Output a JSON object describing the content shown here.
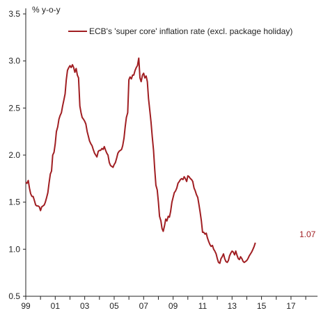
{
  "chart_data": {
    "type": "line",
    "title": "",
    "xlabel": "",
    "ylabel": "% y-o-y",
    "ylim": [
      0.5,
      3.5
    ],
    "yticks": [
      "0.5",
      "1.0",
      "1.5",
      "2.0",
      "2.5",
      "3.0",
      "3.5"
    ],
    "xlim": [
      1999,
      2018.8
    ],
    "xticks": [
      "99",
      "01",
      "03",
      "05",
      "07",
      "09",
      "11",
      "13",
      "15",
      "17"
    ],
    "grid": false,
    "legend_position": "top-right",
    "end_label": "1.07",
    "series": [
      {
        "name": "ECB's 'super core' inflation rate (excl. package holiday)",
        "color": "#a01e22",
        "points": [
          [
            1999.0,
            1.71
          ],
          [
            1999.08,
            1.7
          ],
          [
            1999.17,
            1.73
          ],
          [
            1999.25,
            1.65
          ],
          [
            1999.33,
            1.59
          ],
          [
            1999.42,
            1.56
          ],
          [
            1999.5,
            1.56
          ],
          [
            1999.58,
            1.52
          ],
          [
            1999.67,
            1.47
          ],
          [
            1999.75,
            1.46
          ],
          [
            1999.83,
            1.46
          ],
          [
            1999.92,
            1.45
          ],
          [
            2000.0,
            1.41
          ],
          [
            2000.08,
            1.45
          ],
          [
            2000.17,
            1.46
          ],
          [
            2000.25,
            1.47
          ],
          [
            2000.33,
            1.5
          ],
          [
            2000.42,
            1.55
          ],
          [
            2000.5,
            1.6
          ],
          [
            2000.58,
            1.7
          ],
          [
            2000.67,
            1.8
          ],
          [
            2000.75,
            1.83
          ],
          [
            2000.83,
            2.0
          ],
          [
            2000.92,
            2.03
          ],
          [
            2001.0,
            2.12
          ],
          [
            2001.08,
            2.25
          ],
          [
            2001.17,
            2.3
          ],
          [
            2001.25,
            2.38
          ],
          [
            2001.33,
            2.42
          ],
          [
            2001.42,
            2.45
          ],
          [
            2001.5,
            2.52
          ],
          [
            2001.58,
            2.58
          ],
          [
            2001.67,
            2.65
          ],
          [
            2001.75,
            2.8
          ],
          [
            2001.83,
            2.9
          ],
          [
            2001.92,
            2.93
          ],
          [
            2002.0,
            2.95
          ],
          [
            2002.08,
            2.93
          ],
          [
            2002.17,
            2.96
          ],
          [
            2002.25,
            2.93
          ],
          [
            2002.33,
            2.88
          ],
          [
            2002.42,
            2.92
          ],
          [
            2002.5,
            2.85
          ],
          [
            2002.58,
            2.82
          ],
          [
            2002.67,
            2.52
          ],
          [
            2002.75,
            2.45
          ],
          [
            2002.83,
            2.4
          ],
          [
            2002.92,
            2.38
          ],
          [
            2003.0,
            2.36
          ],
          [
            2003.08,
            2.33
          ],
          [
            2003.17,
            2.25
          ],
          [
            2003.25,
            2.2
          ],
          [
            2003.33,
            2.15
          ],
          [
            2003.42,
            2.12
          ],
          [
            2003.5,
            2.1
          ],
          [
            2003.58,
            2.06
          ],
          [
            2003.67,
            2.02
          ],
          [
            2003.75,
            2.0
          ],
          [
            2003.83,
            1.98
          ],
          [
            2003.92,
            2.04
          ],
          [
            2004.0,
            2.05
          ],
          [
            2004.08,
            2.05
          ],
          [
            2004.17,
            2.07
          ],
          [
            2004.25,
            2.06
          ],
          [
            2004.33,
            2.09
          ],
          [
            2004.42,
            2.05
          ],
          [
            2004.5,
            2.02
          ],
          [
            2004.58,
            2.0
          ],
          [
            2004.67,
            1.92
          ],
          [
            2004.75,
            1.89
          ],
          [
            2004.83,
            1.88
          ],
          [
            2004.92,
            1.87
          ],
          [
            2005.0,
            1.9
          ],
          [
            2005.08,
            1.92
          ],
          [
            2005.17,
            1.97
          ],
          [
            2005.25,
            2.02
          ],
          [
            2005.33,
            2.04
          ],
          [
            2005.42,
            2.05
          ],
          [
            2005.5,
            2.06
          ],
          [
            2005.58,
            2.1
          ],
          [
            2005.67,
            2.18
          ],
          [
            2005.75,
            2.3
          ],
          [
            2005.83,
            2.4
          ],
          [
            2005.92,
            2.45
          ],
          [
            2006.0,
            2.8
          ],
          [
            2006.08,
            2.83
          ],
          [
            2006.17,
            2.81
          ],
          [
            2006.25,
            2.85
          ],
          [
            2006.33,
            2.85
          ],
          [
            2006.42,
            2.9
          ],
          [
            2006.5,
            2.93
          ],
          [
            2006.58,
            2.95
          ],
          [
            2006.67,
            3.03
          ],
          [
            2006.75,
            2.82
          ],
          [
            2006.83,
            2.78
          ],
          [
            2006.92,
            2.85
          ],
          [
            2007.0,
            2.87
          ],
          [
            2007.08,
            2.82
          ],
          [
            2007.17,
            2.84
          ],
          [
            2007.25,
            2.78
          ],
          [
            2007.33,
            2.6
          ],
          [
            2007.42,
            2.47
          ],
          [
            2007.5,
            2.35
          ],
          [
            2007.58,
            2.2
          ],
          [
            2007.67,
            2.05
          ],
          [
            2007.75,
            1.85
          ],
          [
            2007.83,
            1.68
          ],
          [
            2007.92,
            1.63
          ],
          [
            2008.0,
            1.5
          ],
          [
            2008.08,
            1.35
          ],
          [
            2008.17,
            1.3
          ],
          [
            2008.25,
            1.22
          ],
          [
            2008.33,
            1.19
          ],
          [
            2008.42,
            1.25
          ],
          [
            2008.5,
            1.32
          ],
          [
            2008.58,
            1.3
          ],
          [
            2008.67,
            1.35
          ],
          [
            2008.75,
            1.34
          ],
          [
            2008.83,
            1.4
          ],
          [
            2008.92,
            1.5
          ],
          [
            2009.0,
            1.55
          ],
          [
            2009.08,
            1.6
          ],
          [
            2009.17,
            1.62
          ],
          [
            2009.25,
            1.65
          ],
          [
            2009.33,
            1.7
          ],
          [
            2009.42,
            1.72
          ],
          [
            2009.5,
            1.74
          ],
          [
            2009.58,
            1.75
          ],
          [
            2009.67,
            1.74
          ],
          [
            2009.75,
            1.77
          ],
          [
            2009.83,
            1.75
          ],
          [
            2009.92,
            1.72
          ],
          [
            2010.0,
            1.78
          ],
          [
            2010.08,
            1.77
          ],
          [
            2010.17,
            1.75
          ],
          [
            2010.25,
            1.74
          ],
          [
            2010.33,
            1.72
          ],
          [
            2010.42,
            1.65
          ],
          [
            2010.5,
            1.62
          ],
          [
            2010.58,
            1.58
          ],
          [
            2010.67,
            1.55
          ],
          [
            2010.75,
            1.48
          ],
          [
            2010.83,
            1.4
          ],
          [
            2010.92,
            1.3
          ],
          [
            2011.0,
            1.18
          ],
          [
            2011.08,
            1.18
          ],
          [
            2011.17,
            1.16
          ],
          [
            2011.25,
            1.17
          ],
          [
            2011.33,
            1.12
          ],
          [
            2011.42,
            1.08
          ],
          [
            2011.5,
            1.05
          ],
          [
            2011.58,
            1.03
          ],
          [
            2011.67,
            1.04
          ],
          [
            2011.75,
            1.0
          ],
          [
            2011.83,
            0.98
          ],
          [
            2011.92,
            0.95
          ],
          [
            2012.0,
            0.9
          ],
          [
            2012.08,
            0.86
          ],
          [
            2012.17,
            0.85
          ],
          [
            2012.25,
            0.9
          ],
          [
            2012.33,
            0.92
          ],
          [
            2012.42,
            0.95
          ],
          [
            2012.5,
            0.9
          ],
          [
            2012.58,
            0.87
          ],
          [
            2012.67,
            0.86
          ],
          [
            2012.75,
            0.88
          ],
          [
            2012.83,
            0.93
          ],
          [
            2012.92,
            0.96
          ],
          [
            2013.0,
            0.98
          ],
          [
            2013.08,
            0.97
          ],
          [
            2013.17,
            0.94
          ],
          [
            2013.25,
            0.98
          ],
          [
            2013.33,
            0.94
          ],
          [
            2013.42,
            0.9
          ],
          [
            2013.5,
            0.89
          ],
          [
            2013.58,
            0.92
          ],
          [
            2013.67,
            0.9
          ],
          [
            2013.75,
            0.87
          ],
          [
            2013.83,
            0.86
          ],
          [
            2013.92,
            0.87
          ],
          [
            2014.0,
            0.88
          ],
          [
            2014.08,
            0.9
          ],
          [
            2014.17,
            0.93
          ],
          [
            2014.25,
            0.95
          ],
          [
            2014.33,
            0.97
          ],
          [
            2014.42,
            1.0
          ],
          [
            2014.5,
            1.03
          ],
          [
            2014.58,
            1.07
          ]
        ]
      }
    ]
  }
}
